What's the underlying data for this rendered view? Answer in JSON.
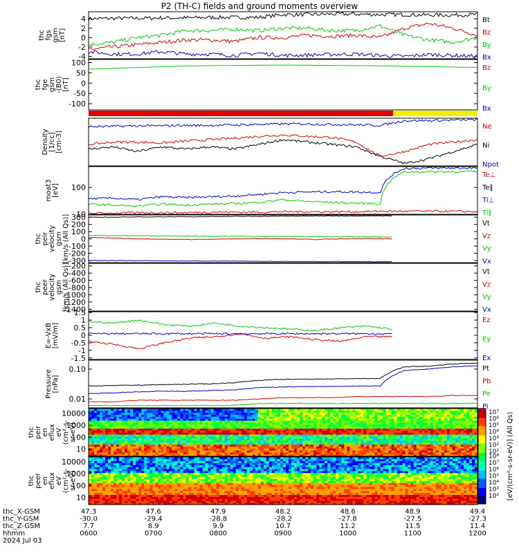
{
  "figure": {
    "title": "P2 (TH-C) fields and ground moments overview",
    "date_label": "2024 Jul 03"
  },
  "colors": {
    "black": "#000000",
    "red": "#e00000",
    "green": "#00d000",
    "blue": "#0000d0",
    "yellow": "#f0f000"
  },
  "chart_data": [
    {
      "type": "line",
      "panel": "fgs",
      "ylabel": [
        "thc",
        "fgs",
        "gsm",
        "[nT]"
      ],
      "yticks": [
        "-4",
        "-2",
        "0",
        "2",
        "4"
      ],
      "ylim": [
        -4.5,
        5.5
      ],
      "series": [
        {
          "name": "Bt",
          "color": "black",
          "values": [
            4.0,
            4.1,
            4.1,
            4.2,
            4.2,
            4.3,
            4.3,
            4.3,
            4.9,
            4.9,
            5.0,
            5.0,
            4.9,
            4.9,
            4.8,
            4.8,
            4.9
          ]
        },
        {
          "name": "Bz",
          "color": "red",
          "values": [
            -2.5,
            -2.0,
            -1.5,
            -1.0,
            -0.5,
            -0.5,
            -0.8,
            0.0,
            0.0,
            0.5,
            0.3,
            0.5,
            0.0,
            2.0,
            3.0,
            2.0,
            0.5
          ]
        },
        {
          "name": "By",
          "color": "green",
          "values": [
            -1.5,
            -1.0,
            0.0,
            0.5,
            1.5,
            1.5,
            1.8,
            1.5,
            2.0,
            2.0,
            1.5,
            1.5,
            2.5,
            0.5,
            -0.5,
            -1.0,
            0.0
          ]
        },
        {
          "name": "Bx",
          "color": "blue",
          "values": [
            -3.0,
            -3.5,
            -3.5,
            -3.0,
            -3.5,
            -3.5,
            -3.8,
            -3.3,
            -3.8,
            -3.7,
            -3.6,
            -3.5,
            -3.8,
            -4.0,
            -3.6,
            -3.8,
            -4.0
          ]
        }
      ]
    },
    {
      "type": "line",
      "panel": "fge",
      "ylabel": [
        "thc",
        "fge",
        "gsm",
        "-(B0)",
        "[nT]"
      ],
      "yticks": [
        "-100",
        "-50",
        "0",
        "50",
        "100"
      ],
      "ylim": [
        -130,
        115
      ],
      "series": [
        {
          "name": "Bz",
          "color": "red",
          "values": []
        },
        {
          "name": "By",
          "color": "green",
          "values": [
            68,
            72,
            76,
            80,
            83,
            85,
            86,
            87,
            88,
            87,
            86,
            85,
            84,
            82,
            80,
            78,
            76
          ]
        },
        {
          "name": "Bx",
          "color": "blue",
          "values": []
        }
      ]
    },
    {
      "type": "line",
      "panel": "density",
      "ylabel": [
        "Density",
        "[1/cc]",
        "[cm-3]"
      ],
      "yticks": [],
      "series": [
        {
          "name": "Ne",
          "color": "red",
          "values": [
            0.45,
            0.5,
            0.5,
            0.48,
            0.52,
            0.55,
            0.58,
            0.62,
            0.65,
            0.62,
            0.6,
            0.5,
            0.2,
            0.3,
            0.45,
            0.5,
            0.55
          ]
        },
        {
          "name": "Ni",
          "color": "black",
          "values": [
            0.35,
            0.4,
            0.3,
            0.4,
            0.35,
            0.4,
            0.35,
            0.45,
            0.55,
            0.5,
            0.45,
            0.4,
            0.2,
            0.05,
            0.15,
            0.3,
            0.45
          ]
        },
        {
          "name": "Npot",
          "color": "blue",
          "values": [
            0.82,
            0.83,
            0.84,
            0.84,
            0.85,
            0.85,
            0.86,
            0.87,
            0.88,
            0.88,
            0.87,
            0.86,
            0.85,
            0.95,
            0.95,
            0.96,
            0.97
          ]
        }
      ]
    },
    {
      "type": "line",
      "panel": "temperature",
      "ylabel": [
        "moat3",
        "[eV]"
      ],
      "yticks": [
        "10",
        "100"
      ],
      "ylim": [
        10,
        600
      ],
      "series": [
        {
          "name": "Te⊥",
          "color": "red",
          "values": [
            11,
            11,
            11.5,
            11.5,
            11.5,
            12,
            12,
            12,
            12.5,
            12.5,
            12.5,
            12.5,
            13,
            13,
            13,
            13,
            12.5
          ]
        },
        {
          "name": "Te∥",
          "color": "black",
          "values": []
        },
        {
          "name": "Ti⊥",
          "color": "blue",
          "values": [
            38,
            40,
            35,
            45,
            42,
            45,
            48,
            55,
            65,
            68,
            70,
            68,
            65,
            520,
            525,
            530,
            530
          ]
        },
        {
          "name": "Ti∥",
          "color": "green",
          "values": [
            24,
            22,
            20,
            24,
            22,
            24,
            25,
            28,
            35,
            30,
            28,
            26,
            25,
            380,
            385,
            390,
            395
          ]
        }
      ]
    },
    {
      "type": "line",
      "panel": "peir_velocity",
      "ylabel": [
        "thc",
        "peir",
        "velocity",
        "gsm",
        "[km/s (All Qs)]"
      ],
      "yticks": [
        "-300",
        "-200",
        "-100",
        "0",
        "100",
        "200",
        "300"
      ],
      "ylim": [
        -330,
        330
      ],
      "series": [
        {
          "name": "Vt",
          "color": "black",
          "values": [
            300,
            300,
            302,
            305,
            306,
            308,
            310,
            312,
            315,
            316,
            318,
            318,
            320
          ]
        },
        {
          "name": "Vz",
          "color": "red",
          "values": [
            20,
            10,
            0,
            -5,
            -10,
            -5,
            0,
            5,
            0,
            -10,
            0,
            5,
            0
          ]
        },
        {
          "name": "Vy",
          "color": "green",
          "values": [
            50,
            45,
            42,
            40,
            38,
            36,
            35,
            32,
            30,
            30,
            28,
            28,
            26
          ]
        },
        {
          "name": "Vx",
          "color": "blue",
          "values": [
            -300,
            -300,
            -302,
            -305,
            -306,
            -308,
            -310,
            -312,
            -313,
            -314,
            -315,
            -316,
            -318
          ]
        }
      ]
    },
    {
      "type": "line",
      "panel": "peer_velocity",
      "ylabel": [
        "thc",
        "peer",
        "velocity",
        "gsm",
        "[km/s (All Qs)]"
      ],
      "yticks": [
        "-1400",
        "-1200",
        "-1000",
        "-800",
        "-600",
        "-400",
        "-200"
      ],
      "ylim": [
        -1450,
        -130
      ],
      "series": [
        {
          "name": "Vt",
          "color": "black",
          "values": []
        },
        {
          "name": "Vz",
          "color": "red",
          "values": []
        },
        {
          "name": "Vy",
          "color": "green",
          "values": []
        },
        {
          "name": "Vx",
          "color": "blue",
          "values": []
        }
      ]
    },
    {
      "type": "line",
      "panel": "efield",
      "ylabel": [
        "E=-VxB",
        "[mV/m]"
      ],
      "yticks": [
        "-1.5",
        "-1",
        "-0.5",
        "0",
        "0.5",
        "1",
        "1.5"
      ],
      "ylim": [
        -1.6,
        1.55
      ],
      "series": [
        {
          "name": "Ez",
          "color": "red",
          "values": [
            -0.4,
            -0.6,
            -0.9,
            -0.5,
            -0.2,
            -0.1,
            0.1,
            -0.2,
            -0.1,
            -0.3,
            -0.4,
            -0.1,
            -0.1
          ]
        },
        {
          "name": "Ey",
          "color": "green",
          "values": [
            0.9,
            0.8,
            1.0,
            0.7,
            0.6,
            0.8,
            0.6,
            0.5,
            0.4,
            0.3,
            0.5,
            0.6,
            0.4
          ]
        },
        {
          "name": "Ex",
          "color": "blue",
          "values": [
            0.1,
            0.1,
            0.1,
            0.1,
            0.1,
            0.1,
            0.1,
            0.1,
            0.1,
            0.1,
            0.1,
            0.1,
            0.1
          ]
        }
      ]
    },
    {
      "type": "line",
      "panel": "pressure",
      "ylabel": [
        "Pressure",
        "[nPa]"
      ],
      "yticks": [
        "0.01",
        "0.10"
      ],
      "ylim": [
        0.005,
        0.2
      ],
      "series": [
        {
          "name": "Pt",
          "color": "black",
          "values": [
            0.027,
            0.028,
            0.029,
            0.03,
            0.031,
            0.032,
            0.035,
            0.042,
            0.045,
            0.046,
            0.047,
            0.048,
            0.048,
            0.12,
            0.125,
            0.15,
            0.16
          ]
        },
        {
          "name": "Pb",
          "color": "red",
          "values": [
            0.008,
            0.008,
            0.009,
            0.009,
            0.009,
            0.009,
            0.009,
            0.01,
            0.011,
            0.011,
            0.011,
            0.012,
            0.012,
            0.012,
            0.012,
            0.013,
            0.013
          ]
        },
        {
          "name": "Pe",
          "color": "green",
          "values": [
            0.006,
            0.006,
            0.006,
            0.006,
            0.006,
            0.006,
            0.006,
            0.007,
            0.007,
            0.007,
            0.007,
            0.007,
            0.007,
            0.007,
            0.007,
            0.007,
            0.007
          ]
        },
        {
          "name": "Pi",
          "color": "blue",
          "values": [
            0.015,
            0.016,
            0.017,
            0.018,
            0.018,
            0.019,
            0.02,
            0.024,
            0.025,
            0.026,
            0.026,
            0.027,
            0.027,
            0.09,
            0.1,
            0.12,
            0.13
          ]
        }
      ]
    },
    {
      "type": "heatmap",
      "panel": "peir_en_eflux",
      "ylabel": [
        "thc",
        "peir",
        "en",
        "eflux",
        "eV",
        "(cm²-s-",
        "sr-eV)"
      ],
      "yticks": [
        "10",
        "100",
        "1000",
        "10000"
      ]
    },
    {
      "type": "heatmap",
      "panel": "peer_en_eflux",
      "ylabel": [
        "thc",
        "peer",
        "en",
        "eflux",
        "eV",
        "(cm²-s-",
        "sr-eV)"
      ],
      "yticks": [
        "10",
        "100",
        "1000",
        "10000"
      ]
    }
  ],
  "colorbar": {
    "label": "[eV/(cm²-s-sr-eV)] (All Qs)",
    "tick_labels_upper": [
      "10⁷",
      "10⁶",
      "10⁵",
      "10⁴",
      "10³",
      "10²",
      "10¹"
    ],
    "tick_labels_lower": [
      "10⁸",
      "10⁷",
      "10⁶",
      "10⁵",
      "10⁴",
      "10³",
      "10²"
    ]
  },
  "x_axis": {
    "rows": [
      {
        "label": "thc_X-GSM",
        "values": [
          "47.3",
          "47.6",
          "47.9",
          "48.2",
          "48.6",
          "48.9",
          "49.4"
        ]
      },
      {
        "label": "thc_Y-GSM",
        "values": [
          "-30.0",
          "-29.4",
          "-28.8",
          "-28.2",
          "-27.8",
          "-27.5",
          "-27.3"
        ]
      },
      {
        "label": "thc_Z-GSM",
        "values": [
          "7.7",
          "8.9",
          "9.9",
          "10.7",
          "11.2",
          "11.5",
          "11.4"
        ]
      },
      {
        "label": "hhmm",
        "values": [
          "0600",
          "0700",
          "0800",
          "0900",
          "1000",
          "1100",
          "1200"
        ]
      }
    ]
  }
}
